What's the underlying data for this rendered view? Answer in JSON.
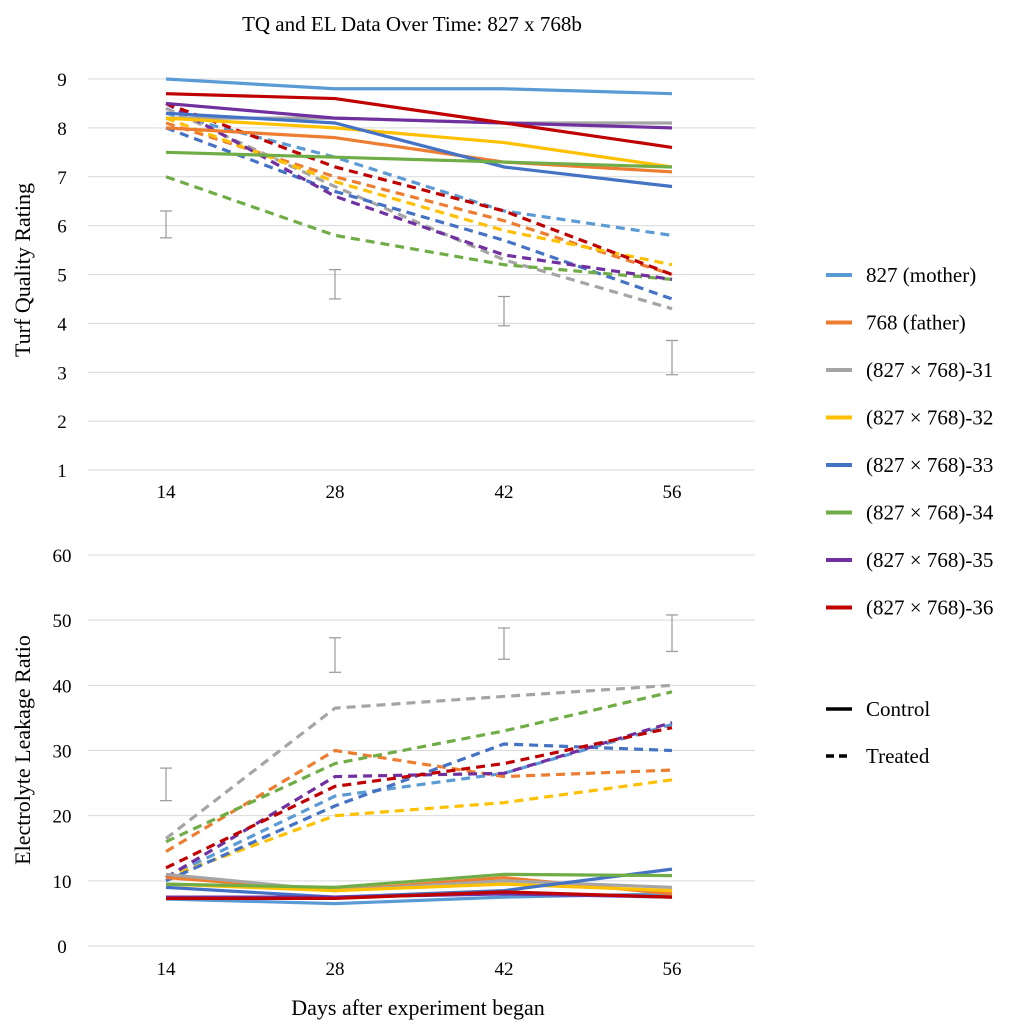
{
  "figure": {
    "title": "TQ and EL Data Over Time:  827 x 768b",
    "xlabel": "Days after experiment began"
  },
  "legend": {
    "style_items": [
      {
        "label": "Control",
        "style": "solid"
      },
      {
        "label": "Treated",
        "style": "dashed"
      }
    ]
  },
  "chart_data": [
    {
      "type": "line",
      "ylabel": "Turf Quality Rating",
      "x": [
        14,
        28,
        42,
        56
      ],
      "xticks": [
        "14",
        "28",
        "42",
        "56"
      ],
      "yticks": [
        "1",
        "2",
        "3",
        "4",
        "5",
        "6",
        "7",
        "8",
        "9"
      ],
      "ylim": [
        1,
        9
      ],
      "grid": "horizontal",
      "legend_position": "right",
      "series": [
        {
          "name": "827 (mother)",
          "color": "#5B9BD5",
          "control": [
            9.0,
            8.8,
            8.8,
            8.7
          ],
          "treated": [
            8.3,
            7.4,
            6.3,
            5.8
          ]
        },
        {
          "name": "768 (father)",
          "color": "#ED7D31",
          "control": [
            8.0,
            7.8,
            7.3,
            7.1
          ],
          "treated": [
            8.1,
            7.0,
            6.1,
            5.0
          ]
        },
        {
          "name": "(827 × 768)-31",
          "color": "#A5A5A5",
          "control": [
            8.2,
            8.2,
            8.1,
            8.1
          ],
          "treated": [
            8.4,
            6.8,
            5.3,
            4.3
          ]
        },
        {
          "name": "(827 × 768)-32",
          "color": "#FFC000",
          "control": [
            8.2,
            8.0,
            7.7,
            7.2
          ],
          "treated": [
            8.2,
            6.9,
            5.9,
            5.2
          ]
        },
        {
          "name": "(827 × 768)-33",
          "color": "#4472C4",
          "control": [
            8.3,
            8.1,
            7.2,
            6.8
          ],
          "treated": [
            8.0,
            6.7,
            5.7,
            4.5
          ]
        },
        {
          "name": "(827 × 768)-34",
          "color": "#70AD47",
          "control": [
            7.5,
            7.4,
            7.3,
            7.2
          ],
          "treated": [
            7.0,
            5.8,
            5.2,
            4.9
          ]
        },
        {
          "name": "(827 × 768)-35",
          "color": "#7030A0",
          "control": [
            8.5,
            8.2,
            8.1,
            8.0
          ],
          "treated": [
            8.5,
            6.6,
            5.4,
            4.9
          ]
        },
        {
          "name": "(827 × 768)-36",
          "color": "#C00000",
          "control": [
            8.7,
            8.6,
            8.1,
            7.6
          ],
          "treated": [
            8.5,
            7.2,
            6.3,
            5.0
          ]
        }
      ],
      "error_bars": [
        {
          "x": 14,
          "low": 5.75,
          "high": 6.3
        },
        {
          "x": 28,
          "low": 4.5,
          "high": 5.1
        },
        {
          "x": 42,
          "low": 3.95,
          "high": 4.55
        },
        {
          "x": 56,
          "low": 2.95,
          "high": 3.65
        }
      ]
    },
    {
      "type": "line",
      "ylabel": "Electrolyte Leakage Ratio",
      "x": [
        14,
        28,
        42,
        56
      ],
      "xticks": [
        "14",
        "28",
        "42",
        "56"
      ],
      "yticks": [
        "0",
        "10",
        "20",
        "30",
        "40",
        "50",
        "60"
      ],
      "ylim": [
        0,
        60
      ],
      "grid": "horizontal",
      "series": [
        {
          "name": "827 (mother)",
          "color": "#5B9BD5",
          "control": [
            7.2,
            6.5,
            7.5,
            8.0
          ],
          "treated": [
            10.5,
            23.0,
            26.5,
            34.0
          ]
        },
        {
          "name": "768 (father)",
          "color": "#ED7D31",
          "control": [
            10.5,
            8.5,
            10.5,
            8.0
          ],
          "treated": [
            14.5,
            30.0,
            26.0,
            27.0
          ]
        },
        {
          "name": "(827 × 768)-31",
          "color": "#A5A5A5",
          "control": [
            11.0,
            8.5,
            10.0,
            9.0
          ],
          "treated": [
            16.5,
            36.5,
            38.3,
            40.0
          ]
        },
        {
          "name": "(827 × 768)-32",
          "color": "#FFC000",
          "control": [
            9.5,
            8.5,
            9.5,
            8.5
          ],
          "treated": [
            10.5,
            20.0,
            22.0,
            25.5
          ]
        },
        {
          "name": "(827 × 768)-33",
          "color": "#4472C4",
          "control": [
            9.0,
            7.5,
            8.5,
            11.8
          ],
          "treated": [
            10.0,
            21.5,
            31.0,
            30.0
          ]
        },
        {
          "name": "(827 × 768)-34",
          "color": "#70AD47",
          "control": [
            9.5,
            9.0,
            11.0,
            10.8
          ],
          "treated": [
            16.0,
            28.0,
            33.0,
            39.0
          ]
        },
        {
          "name": "(827 × 768)-35",
          "color": "#7030A0",
          "control": [
            7.5,
            7.5,
            8.0,
            7.5
          ],
          "treated": [
            10.5,
            26.0,
            26.5,
            34.3
          ]
        },
        {
          "name": "(827 × 768)-36",
          "color": "#C00000",
          "control": [
            7.3,
            7.3,
            8.3,
            7.5
          ],
          "treated": [
            12.0,
            24.5,
            28.0,
            33.5
          ]
        }
      ],
      "error_bars": [
        {
          "x": 14,
          "low": 22.3,
          "high": 27.3
        },
        {
          "x": 28,
          "low": 42.0,
          "high": 47.3
        },
        {
          "x": 42,
          "low": 44.0,
          "high": 48.8
        },
        {
          "x": 56,
          "low": 45.2,
          "high": 50.8
        }
      ]
    }
  ]
}
